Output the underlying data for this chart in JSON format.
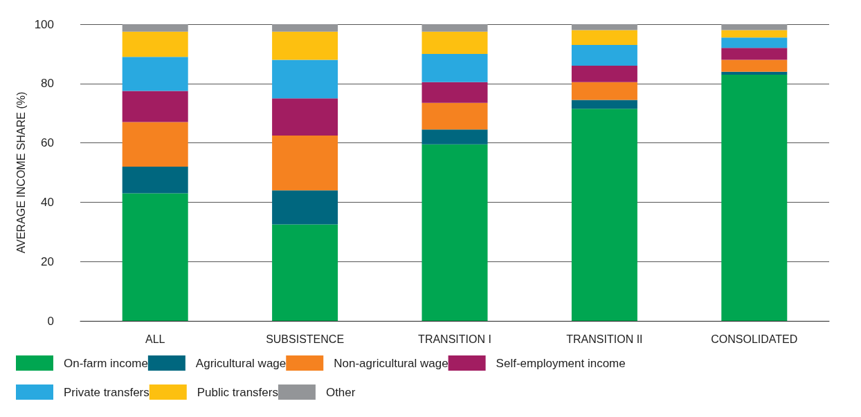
{
  "chart_data": {
    "type": "bar",
    "stacked": true,
    "ylabel": "AVERAGE INCOME SHARE (%)",
    "categories": [
      "ALL",
      "SUBSISTENCE",
      "TRANSITION I",
      "TRANSITION II",
      "CONSOLIDATED"
    ],
    "series": [
      {
        "name": "On-farm income",
        "color": "#00a651",
        "values": [
          43,
          32.5,
          59.5,
          71.5,
          83
        ]
      },
      {
        "name": "Agricultural wage",
        "color": "#00677f",
        "values": [
          9,
          11.5,
          5,
          3,
          1
        ]
      },
      {
        "name": "Non-agricultural wage",
        "color": "#f58220",
        "values": [
          15,
          18.5,
          9,
          6,
          4
        ]
      },
      {
        "name": "Self-employment income",
        "color": "#a21d61",
        "values": [
          10.5,
          12.5,
          7,
          5.5,
          4
        ]
      },
      {
        "name": "Private transfers",
        "color": "#29a9e0",
        "values": [
          11.5,
          13,
          9.5,
          7,
          3.5
        ]
      },
      {
        "name": "Public transfers",
        "color": "#fdc010",
        "values": [
          8.5,
          9.5,
          7.5,
          5,
          2.5
        ]
      },
      {
        "name": "Other",
        "color": "#939598",
        "values": [
          2.5,
          2.5,
          2.5,
          2,
          2
        ]
      }
    ],
    "ylim": [
      0,
      100
    ],
    "yticks": [
      0,
      20,
      40,
      60,
      80,
      100
    ],
    "grid": "y",
    "legend": "bottom"
  }
}
